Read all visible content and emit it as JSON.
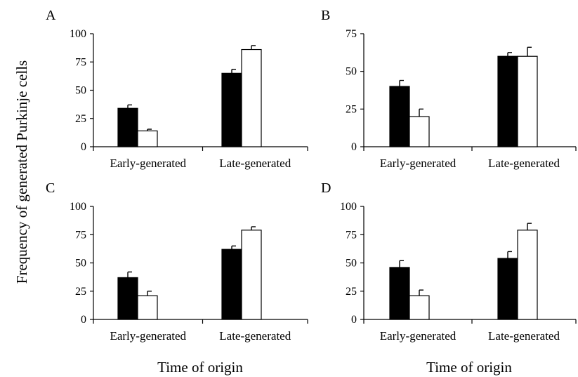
{
  "ylabel": "Frequency of generated Purkinje cells",
  "xlabels": [
    "Time of origin",
    "Time of origin"
  ],
  "colors": {
    "series_a": "#000000",
    "series_b": "#ffffff",
    "stroke": "#000000"
  },
  "chart_data": [
    {
      "panel": "A",
      "type": "bar",
      "categories": [
        "Early-generated",
        "Late-generated"
      ],
      "series": [
        {
          "values": [
            34,
            65
          ],
          "errors": [
            3,
            3.5
          ]
        },
        {
          "values": [
            14,
            86
          ],
          "errors": [
            1.5,
            3.5
          ]
        }
      ],
      "ylim": [
        0,
        100
      ],
      "yticks": [
        0,
        25,
        50,
        75,
        100
      ]
    },
    {
      "panel": "B",
      "type": "bar",
      "categories": [
        "Early-generated",
        "Late-generated"
      ],
      "series": [
        {
          "values": [
            40,
            60
          ],
          "errors": [
            4,
            2.5
          ]
        },
        {
          "values": [
            20,
            60
          ],
          "errors": [
            5,
            6
          ]
        }
      ],
      "ylim": [
        0,
        75
      ],
      "yticks": [
        0,
        25,
        50,
        75
      ]
    },
    {
      "panel": "C",
      "type": "bar",
      "categories": [
        "Early-generated",
        "Late-generated"
      ],
      "series": [
        {
          "values": [
            37,
            62
          ],
          "errors": [
            5,
            3
          ]
        },
        {
          "values": [
            21,
            79
          ],
          "errors": [
            4,
            3
          ]
        }
      ],
      "ylim": [
        0,
        100
      ],
      "yticks": [
        0,
        25,
        50,
        75,
        100
      ]
    },
    {
      "panel": "D",
      "type": "bar",
      "categories": [
        "Early-generated",
        "Late-generated"
      ],
      "series": [
        {
          "values": [
            46,
            54
          ],
          "errors": [
            6,
            6
          ]
        },
        {
          "values": [
            21,
            79
          ],
          "errors": [
            5,
            6
          ]
        }
      ],
      "ylim": [
        0,
        100
      ],
      "yticks": [
        0,
        25,
        50,
        75,
        100
      ]
    }
  ]
}
